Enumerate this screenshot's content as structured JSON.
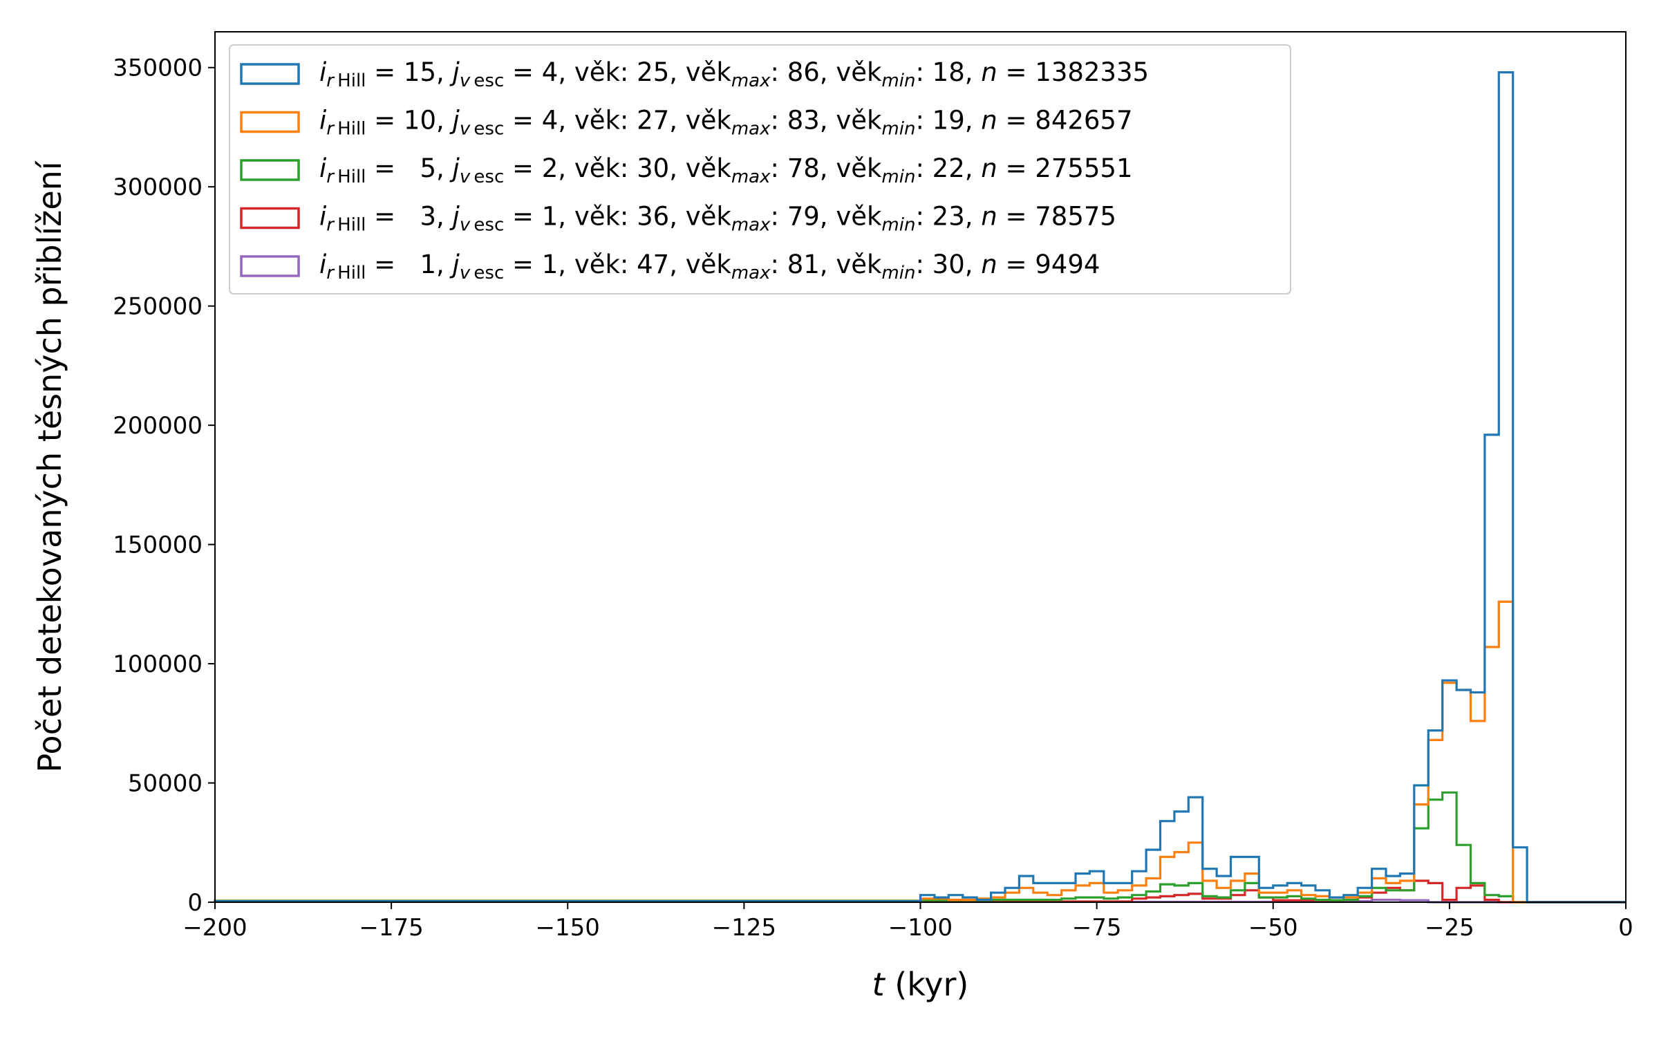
{
  "chart_data": {
    "type": "histogram-step",
    "xlabel_var": "t",
    "xlabel_unit": " (kyr)",
    "ylabel": "Počet detekovaných těsných přiblížení",
    "xlim": [
      -200,
      0
    ],
    "ylim": [
      0,
      365000
    ],
    "x_ticks": [
      -200,
      -175,
      -150,
      -125,
      -100,
      -75,
      -50,
      -25,
      0
    ],
    "x_tick_labels": [
      "−200",
      "−175",
      "−150",
      "−125",
      "−100",
      "−75",
      "−50",
      "−25",
      "0"
    ],
    "y_ticks": [
      0,
      50000,
      100000,
      150000,
      200000,
      250000,
      300000,
      350000
    ],
    "y_tick_labels": [
      "0",
      "50000",
      "100000",
      "150000",
      "200000",
      "250000",
      "300000",
      "350000"
    ],
    "grid": false,
    "legend_position": "top-left",
    "series": [
      {
        "color": "#1f77b4",
        "legend": {
          "i": "15",
          "j": "4",
          "vek": "25",
          "vek_max": "86",
          "vek_min": "18",
          "n": "1382335"
        },
        "bins": [
          [
            -200,
            -100,
            400
          ],
          [
            -100,
            -98,
            3000
          ],
          [
            -98,
            -96,
            2000
          ],
          [
            -96,
            -94,
            3000
          ],
          [
            -94,
            -92,
            2000
          ],
          [
            -92,
            -90,
            1000
          ],
          [
            -90,
            -88,
            4000
          ],
          [
            -88,
            -86,
            6000
          ],
          [
            -86,
            -84,
            11000
          ],
          [
            -84,
            -82,
            8000
          ],
          [
            -82,
            -80,
            8000
          ],
          [
            -80,
            -78,
            8000
          ],
          [
            -78,
            -76,
            12000
          ],
          [
            -76,
            -74,
            13000
          ],
          [
            -74,
            -72,
            8000
          ],
          [
            -72,
            -70,
            8000
          ],
          [
            -70,
            -68,
            13000
          ],
          [
            -68,
            -66,
            22000
          ],
          [
            -66,
            -64,
            34000
          ],
          [
            -64,
            -62,
            38000
          ],
          [
            -62,
            -60,
            44000
          ],
          [
            -60,
            -58,
            14000
          ],
          [
            -58,
            -56,
            11000
          ],
          [
            -56,
            -54,
            19000
          ],
          [
            -54,
            -52,
            19000
          ],
          [
            -52,
            -50,
            6000
          ],
          [
            -50,
            -48,
            7000
          ],
          [
            -48,
            -46,
            8000
          ],
          [
            -46,
            -44,
            7000
          ],
          [
            -44,
            -42,
            5000
          ],
          [
            -42,
            -40,
            2000
          ],
          [
            -40,
            -38,
            3000
          ],
          [
            -38,
            -36,
            6000
          ],
          [
            -36,
            -34,
            14000
          ],
          [
            -34,
            -32,
            11000
          ],
          [
            -32,
            -30,
            12000
          ],
          [
            -30,
            -28,
            49000
          ],
          [
            -28,
            -26,
            72000
          ],
          [
            -26,
            -24,
            93000
          ],
          [
            -24,
            -22,
            89000
          ],
          [
            -22,
            -20,
            88000
          ],
          [
            -20,
            -18,
            196000
          ],
          [
            -18,
            -16,
            348000
          ],
          [
            -16,
            -14,
            23000
          ],
          [
            -14,
            0,
            0
          ]
        ]
      },
      {
        "color": "#ff7f0e",
        "legend": {
          "i": "10",
          "j": "4",
          "vek": "27",
          "vek_max": "83",
          "vek_min": "19",
          "n": "842657"
        },
        "bins": [
          [
            -200,
            -100,
            500
          ],
          [
            -100,
            -96,
            1500
          ],
          [
            -96,
            -92,
            1000
          ],
          [
            -92,
            -90,
            1500
          ],
          [
            -90,
            -88,
            2000
          ],
          [
            -88,
            -86,
            4000
          ],
          [
            -86,
            -84,
            6000
          ],
          [
            -84,
            -82,
            4000
          ],
          [
            -82,
            -80,
            3000
          ],
          [
            -80,
            -78,
            5000
          ],
          [
            -78,
            -76,
            7000
          ],
          [
            -76,
            -74,
            8000
          ],
          [
            -74,
            -72,
            4000
          ],
          [
            -72,
            -70,
            5000
          ],
          [
            -70,
            -68,
            7000
          ],
          [
            -68,
            -66,
            10000
          ],
          [
            -66,
            -64,
            19000
          ],
          [
            -64,
            -62,
            21000
          ],
          [
            -62,
            -60,
            25000
          ],
          [
            -60,
            -58,
            9000
          ],
          [
            -58,
            -56,
            6000
          ],
          [
            -56,
            -54,
            9000
          ],
          [
            -54,
            -52,
            12000
          ],
          [
            -52,
            -50,
            4000
          ],
          [
            -50,
            -48,
            4000
          ],
          [
            -48,
            -46,
            5000
          ],
          [
            -46,
            -44,
            3000
          ],
          [
            -44,
            -42,
            2500
          ],
          [
            -42,
            -40,
            2000
          ],
          [
            -40,
            -38,
            2000
          ],
          [
            -38,
            -36,
            4000
          ],
          [
            -36,
            -34,
            10000
          ],
          [
            -34,
            -32,
            8000
          ],
          [
            -32,
            -30,
            9000
          ],
          [
            -30,
            -28,
            41000
          ],
          [
            -28,
            -26,
            68000
          ],
          [
            -26,
            -24,
            92000
          ],
          [
            -24,
            -22,
            89000
          ],
          [
            -22,
            -20,
            76000
          ],
          [
            -20,
            -18,
            107000
          ],
          [
            -18,
            -16,
            126000
          ],
          [
            -16,
            -14,
            0
          ],
          [
            -14,
            0,
            0
          ]
        ]
      },
      {
        "color": "#2ca02c",
        "legend": {
          "i": "5",
          "j": "2",
          "vek": "30",
          "vek_max": "78",
          "vek_min": "22",
          "n": "275551"
        },
        "bins": [
          [
            -200,
            -100,
            600
          ],
          [
            -100,
            -90,
            800
          ],
          [
            -90,
            -80,
            1000
          ],
          [
            -80,
            -78,
            1500
          ],
          [
            -78,
            -76,
            2000
          ],
          [
            -76,
            -74,
            2000
          ],
          [
            -74,
            -72,
            1500
          ],
          [
            -72,
            -70,
            2000
          ],
          [
            -70,
            -68,
            3000
          ],
          [
            -68,
            -66,
            4500
          ],
          [
            -66,
            -64,
            7500
          ],
          [
            -64,
            -62,
            7000
          ],
          [
            -62,
            -60,
            8000
          ],
          [
            -60,
            -58,
            2500
          ],
          [
            -58,
            -56,
            2000
          ],
          [
            -56,
            -54,
            5000
          ],
          [
            -54,
            -52,
            8000
          ],
          [
            -52,
            -50,
            2000
          ],
          [
            -50,
            -48,
            2000
          ],
          [
            -48,
            -46,
            2500
          ],
          [
            -46,
            -44,
            1500
          ],
          [
            -44,
            -42,
            1000
          ],
          [
            -42,
            -40,
            800
          ],
          [
            -40,
            -38,
            1000
          ],
          [
            -38,
            -36,
            2500
          ],
          [
            -36,
            -34,
            6000
          ],
          [
            -34,
            -32,
            5000
          ],
          [
            -32,
            -30,
            5000
          ],
          [
            -30,
            -28,
            31000
          ],
          [
            -28,
            -26,
            43000
          ],
          [
            -26,
            -24,
            46000
          ],
          [
            -24,
            -22,
            24000
          ],
          [
            -22,
            -20,
            8000
          ],
          [
            -20,
            -18,
            3000
          ],
          [
            -18,
            -16,
            2500
          ],
          [
            -16,
            0,
            0
          ]
        ]
      },
      {
        "color": "#d62728",
        "legend": {
          "i": "3",
          "j": "1",
          "vek": "36",
          "vek_max": "79",
          "vek_min": "23",
          "n": "78575"
        },
        "bins": [
          [
            -200,
            -100,
            200
          ],
          [
            -100,
            -70,
            300
          ],
          [
            -70,
            -68,
            1500
          ],
          [
            -68,
            -66,
            2000
          ],
          [
            -66,
            -64,
            2500
          ],
          [
            -64,
            -62,
            3000
          ],
          [
            -62,
            -60,
            3500
          ],
          [
            -60,
            -56,
            1500
          ],
          [
            -56,
            -54,
            3000
          ],
          [
            -54,
            -52,
            5000
          ],
          [
            -52,
            -50,
            2000
          ],
          [
            -50,
            -40,
            800
          ],
          [
            -40,
            -38,
            1000
          ],
          [
            -38,
            -36,
            2000
          ],
          [
            -36,
            -34,
            4000
          ],
          [
            -34,
            -32,
            6000
          ],
          [
            -32,
            -30,
            5000
          ],
          [
            -30,
            -28,
            9000
          ],
          [
            -28,
            -26,
            8000
          ],
          [
            -26,
            -24,
            1000
          ],
          [
            -24,
            -22,
            6000
          ],
          [
            -22,
            -20,
            7000
          ],
          [
            -20,
            -18,
            1000
          ],
          [
            -18,
            0,
            0
          ]
        ]
      },
      {
        "color": "#9467bd",
        "legend": {
          "i": "1",
          "j": "1",
          "vek": "47",
          "vek_max": "81",
          "vek_min": "30",
          "n": "9494"
        },
        "bins": [
          [
            -200,
            -40,
            150
          ],
          [
            -40,
            -36,
            500
          ],
          [
            -36,
            -32,
            1000
          ],
          [
            -32,
            -28,
            800
          ],
          [
            -28,
            0,
            0
          ]
        ]
      }
    ]
  }
}
